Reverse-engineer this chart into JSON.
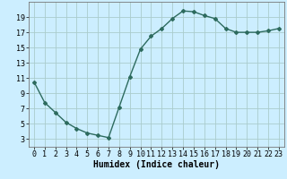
{
  "x": [
    0,
    1,
    2,
    3,
    4,
    5,
    6,
    7,
    8,
    9,
    10,
    11,
    12,
    13,
    14,
    15,
    16,
    17,
    18,
    19,
    20,
    21,
    22,
    23
  ],
  "y": [
    10.5,
    7.8,
    6.5,
    5.2,
    4.4,
    3.8,
    3.5,
    3.2,
    7.2,
    11.2,
    14.8,
    16.5,
    17.5,
    18.8,
    19.8,
    19.7,
    19.2,
    18.8,
    17.5,
    17.0,
    17.0,
    17.0,
    17.2,
    17.5
  ],
  "line_color": "#2d6b5e",
  "marker": "D",
  "marker_size": 2.0,
  "bg_color": "#cceeff",
  "grid_color": "#aacccc",
  "xlabel": "Humidex (Indice chaleur)",
  "xlabel_fontsize": 7,
  "xlim": [
    -0.5,
    23.5
  ],
  "ylim": [
    2,
    21
  ],
  "yticks": [
    3,
    5,
    7,
    9,
    11,
    13,
    15,
    17,
    19
  ],
  "xticks": [
    0,
    1,
    2,
    3,
    4,
    5,
    6,
    7,
    8,
    9,
    10,
    11,
    12,
    13,
    14,
    15,
    16,
    17,
    18,
    19,
    20,
    21,
    22,
    23
  ],
  "tick_fontsize": 6,
  "linewidth": 1.0
}
